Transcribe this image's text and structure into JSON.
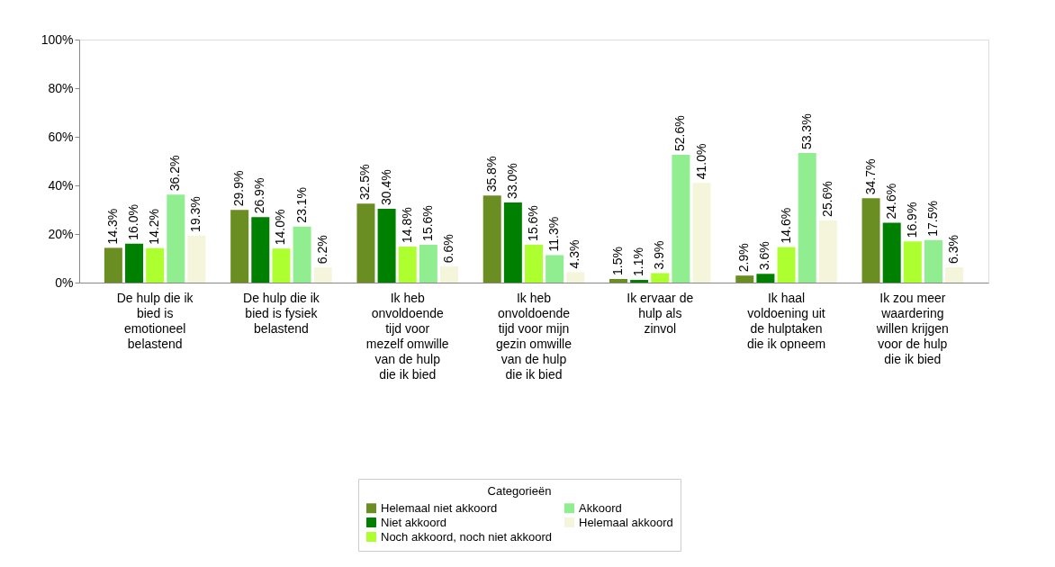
{
  "chart_data": {
    "type": "bar",
    "legend_title": "Categorieën",
    "legend": "bottom",
    "grid": false,
    "categories": [
      "De hulp die ik bied is emotioneel belastend",
      "De hulp die ik bied is fysiek belastend",
      "Ik heb onvoldoende tijd voor mezelf omwille van de hulp die ik bied",
      "Ik heb onvoldoende tijd voor mijn gezin omwille van de hulp die ik bied",
      "Ik ervaar de hulp als zinvol",
      "Ik haal voldoening uit de hulptaken die ik opneem",
      "Ik zou meer waardering willen krijgen voor de hulp die ik bied"
    ],
    "ylim": [
      0,
      100
    ],
    "yticks": [
      {
        "value": 0,
        "label": "0%"
      },
      {
        "value": 20,
        "label": "20%"
      },
      {
        "value": 40,
        "label": "40%"
      },
      {
        "value": 60,
        "label": "60%"
      },
      {
        "value": 80,
        "label": "80%"
      },
      {
        "value": 100,
        "label": "100%"
      }
    ],
    "series": [
      {
        "name": "Helemaal niet akkoord",
        "color": "#6b8e23",
        "values": [
          14.3,
          29.9,
          32.5,
          35.8,
          1.5,
          2.9,
          34.7
        ],
        "value_labels": [
          "14.3%",
          "29.9%",
          "32.5%",
          "35.8%",
          "1.5%",
          "2.9%",
          "34.7%"
        ]
      },
      {
        "name": "Niet akkoord",
        "color": "#008000",
        "values": [
          16.0,
          26.9,
          30.4,
          33.0,
          1.1,
          3.6,
          24.6
        ],
        "value_labels": [
          "16.0%",
          "26.9%",
          "30.4%",
          "33.0%",
          "1.1%",
          "3.6%",
          "24.6%"
        ]
      },
      {
        "name": "Noch akkoord, noch niet akkoord",
        "color": "#adff2f",
        "values": [
          14.2,
          14.0,
          14.8,
          15.6,
          3.9,
          14.6,
          16.9
        ],
        "value_labels": [
          "14.2%",
          "14.0%",
          "14.8%",
          "15.6%",
          "3.9%",
          "14.6%",
          "16.9%"
        ]
      },
      {
        "name": "Akkoord",
        "color": "#90ee90",
        "values": [
          36.2,
          23.1,
          15.6,
          11.3,
          52.6,
          53.3,
          17.5
        ],
        "value_labels": [
          "36.2%",
          "23.1%",
          "15.6%",
          "11.3%",
          "52.6%",
          "53.3%",
          "17.5%"
        ]
      },
      {
        "name": "Helemaal akkoord",
        "color": "#f5f5dc",
        "values": [
          19.3,
          6.2,
          6.6,
          4.3,
          41.0,
          25.6,
          6.3
        ],
        "value_labels": [
          "19.3%",
          "6.2%",
          "6.6%",
          "4.3%",
          "41.0%",
          "25.6%",
          "6.3%"
        ]
      }
    ]
  }
}
